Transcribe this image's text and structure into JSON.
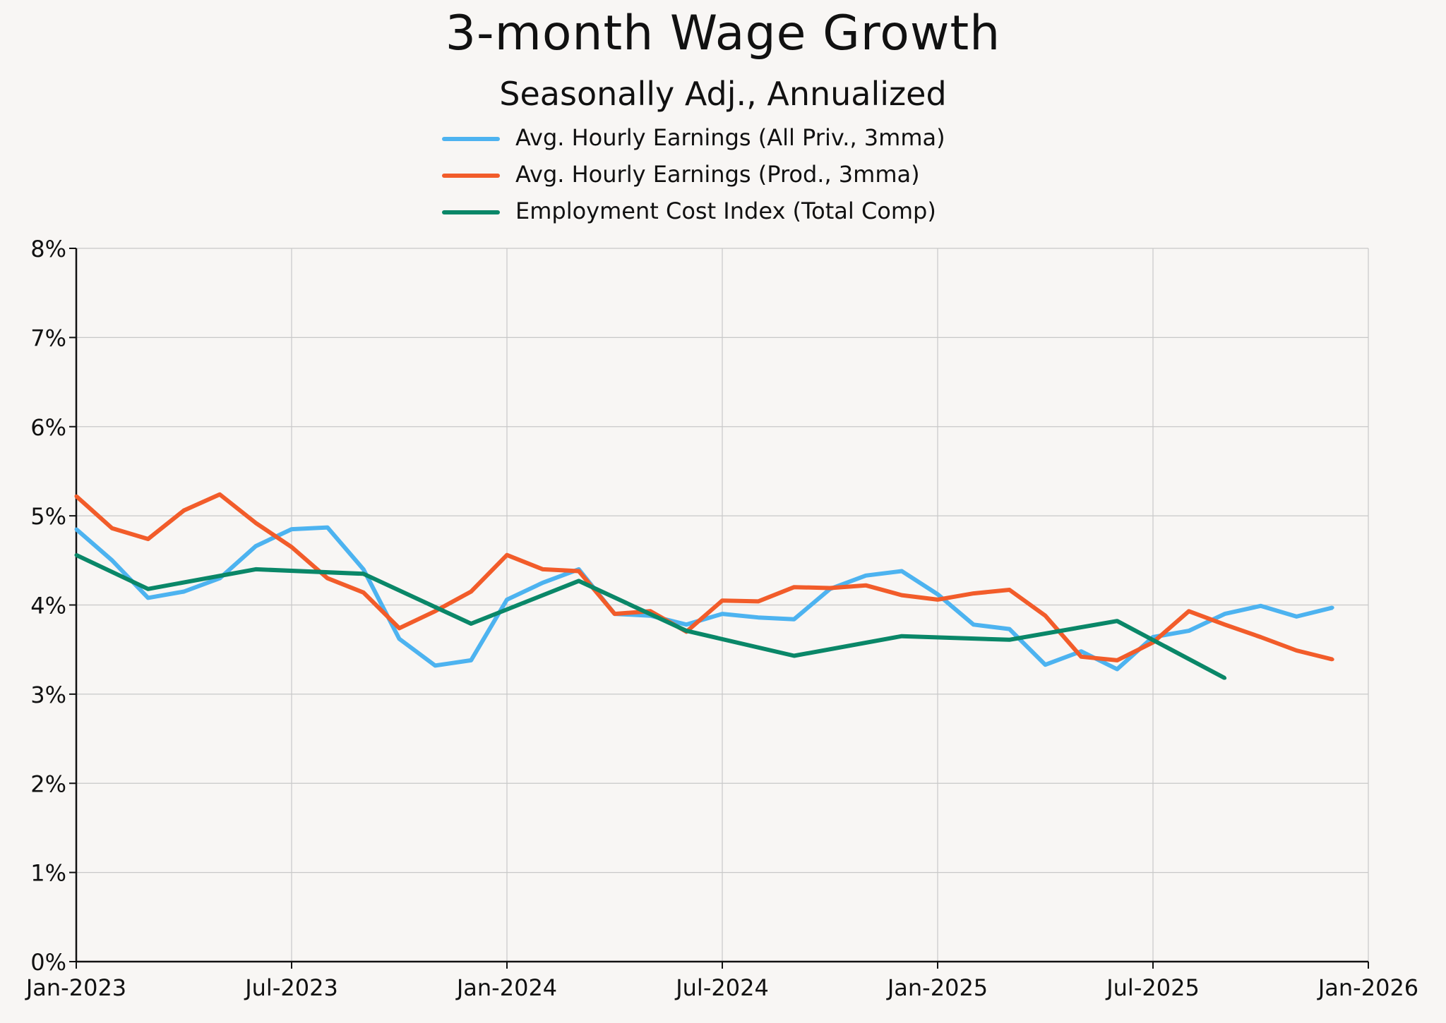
{
  "chart_data": {
    "type": "line",
    "title": "3-month Wage Growth",
    "subtitle": "Seasonally Adj., Annualized",
    "xlabel": "",
    "ylabel": "",
    "ylim": [
      0,
      8
    ],
    "yticks": [
      "0%",
      "1%",
      "2%",
      "3%",
      "4%",
      "5%",
      "6%",
      "7%",
      "8%"
    ],
    "xlim": [
      0,
      36
    ],
    "xticks": [
      {
        "x": 0,
        "label": "Jan-2023"
      },
      {
        "x": 6,
        "label": "Jul-2023"
      },
      {
        "x": 12,
        "label": "Jan-2024"
      },
      {
        "x": 18,
        "label": "Jul-2024"
      },
      {
        "x": 24,
        "label": "Jan-2025"
      },
      {
        "x": 30,
        "label": "Jul-2025"
      },
      {
        "x": 36,
        "label": "Jan-2026"
      }
    ],
    "x_unit": "months since Jan-2023",
    "grid": true,
    "legend_position": "top-center",
    "series": [
      {
        "name": "Avg. Hourly Earnings (All Priv., 3mma)",
        "color": "#4db3f0",
        "x": [
          0,
          1,
          2,
          3,
          4,
          5,
          6,
          7,
          8,
          9,
          10,
          11,
          12,
          13,
          14,
          15,
          16,
          17,
          18,
          19,
          20,
          21,
          22,
          23,
          24,
          25,
          26,
          27,
          28,
          29,
          30,
          31,
          32,
          33,
          34,
          35
        ],
        "values": [
          4.85,
          4.5,
          4.08,
          4.15,
          4.3,
          4.66,
          4.85,
          4.87,
          4.4,
          3.62,
          3.32,
          3.38,
          4.06,
          4.25,
          4.4,
          3.9,
          3.88,
          3.78,
          3.9,
          3.86,
          3.84,
          4.18,
          4.33,
          4.38,
          4.12,
          3.78,
          3.73,
          3.33,
          3.48,
          3.28,
          3.64,
          3.71,
          3.9,
          3.99,
          3.87,
          3.97
        ]
      },
      {
        "name": "Avg. Hourly Earnings (Prod., 3mma)",
        "color": "#f25c2a",
        "x": [
          0,
          1,
          2,
          3,
          4,
          5,
          6,
          7,
          8,
          9,
          10,
          11,
          12,
          13,
          14,
          15,
          16,
          17,
          18,
          19,
          20,
          21,
          22,
          23,
          24,
          25,
          26,
          27,
          28,
          29,
          30,
          31,
          32,
          33,
          34,
          35
        ],
        "values": [
          5.22,
          4.86,
          4.74,
          5.06,
          5.24,
          4.92,
          4.65,
          4.3,
          4.14,
          3.74,
          3.93,
          4.15,
          4.56,
          4.4,
          4.38,
          3.9,
          3.93,
          3.7,
          4.05,
          4.04,
          4.2,
          4.19,
          4.22,
          4.11,
          4.06,
          4.13,
          4.17,
          3.88,
          3.42,
          3.38,
          3.58,
          3.93,
          3.78,
          3.64,
          3.49,
          3.39
        ]
      },
      {
        "name": "Employment Cost Index (Total Comp)",
        "color": "#0a8768",
        "x": [
          0,
          2,
          5,
          8,
          11,
          14,
          17,
          20,
          23,
          26,
          29,
          32
        ],
        "values": [
          4.56,
          4.18,
          4.4,
          4.35,
          3.79,
          4.27,
          3.71,
          3.43,
          3.65,
          3.61,
          3.82,
          3.18
        ]
      }
    ]
  }
}
